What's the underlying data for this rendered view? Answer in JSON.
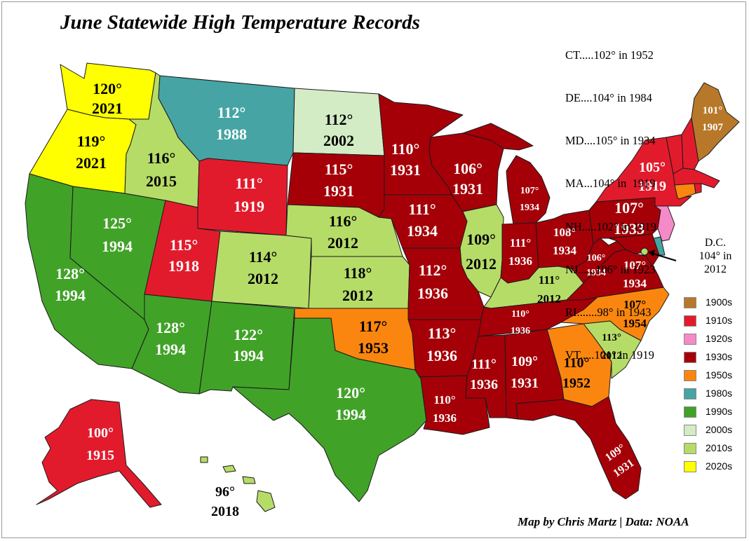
{
  "title": "June Statewide High Temperature Records",
  "credit": "Map by Chris Martz | Data: NOAA",
  "small_states": [
    {
      "line": "CT.....102° in 1952"
    },
    {
      "line": "DE....104° in 1984"
    },
    {
      "line": "MD....105° in 1934"
    },
    {
      "line": "MA...104° in  1919"
    },
    {
      "line": "NH.....102° in 1919"
    },
    {
      "line": "NJ......106° in 1923"
    },
    {
      "line": "RI.......98° in 1943"
    },
    {
      "line": "VT.....101° in 1919"
    }
  ],
  "dc": {
    "line1": "D.C.",
    "line2": "104° in",
    "line3": "2012"
  },
  "legend": [
    {
      "label": "1900s",
      "color": "#b8782a"
    },
    {
      "label": "1910s",
      "color": "#e21b2c"
    },
    {
      "label": "1920s",
      "color": "#f58ac9"
    },
    {
      "label": "1930s",
      "color": "#a50008"
    },
    {
      "label": "1950s",
      "color": "#fb860f"
    },
    {
      "label": "1980s",
      "color": "#46a4a4"
    },
    {
      "label": "1990s",
      "color": "#41a228"
    },
    {
      "label": "2000s",
      "color": "#d3ecc5"
    },
    {
      "label": "2010s",
      "color": "#b6dc68"
    },
    {
      "label": "2020s",
      "color": "#ffff00"
    }
  ],
  "states": {
    "WA": {
      "temp": "120°",
      "year": "2021"
    },
    "OR": {
      "temp": "119°",
      "year": "2021"
    },
    "CA": {
      "temp": "128°",
      "year": "1994"
    },
    "NV": {
      "temp": "125°",
      "year": "1994"
    },
    "ID": {
      "temp": "116°",
      "year": "2015"
    },
    "MT": {
      "temp": "112°",
      "year": "1988"
    },
    "WY": {
      "temp": "111°",
      "year": "1919"
    },
    "UT": {
      "temp": "115°",
      "year": "1918"
    },
    "AZ": {
      "temp": "128°",
      "year": "1994"
    },
    "CO": {
      "temp": "114°",
      "year": "2012"
    },
    "NM": {
      "temp": "122°",
      "year": "1994"
    },
    "ND": {
      "temp": "112°",
      "year": "2002"
    },
    "SD": {
      "temp": "115°",
      "year": "1931"
    },
    "NE": {
      "temp": "116°",
      "year": "2012"
    },
    "KS": {
      "temp": "118°",
      "year": "2012"
    },
    "OK": {
      "temp": "117°",
      "year": "1953"
    },
    "TX": {
      "temp": "120°",
      "year": "1994"
    },
    "MN": {
      "temp": "110°",
      "year": "1931"
    },
    "IA": {
      "temp": "111°",
      "year": "1934"
    },
    "MO": {
      "temp": "112°",
      "year": "1936"
    },
    "AR": {
      "temp": "113°",
      "year": "1936"
    },
    "LA": {
      "temp": "110°",
      "year": "1936"
    },
    "WI": {
      "temp": "106°",
      "year": "1931"
    },
    "IL": {
      "temp": "109°",
      "year": "2012"
    },
    "MI": {
      "temp": "107°",
      "year": "1934"
    },
    "IN": {
      "temp": "111°",
      "year": "1936"
    },
    "OH": {
      "temp": "108°",
      "year": "1934"
    },
    "KY": {
      "temp": "111°",
      "year": "2012"
    },
    "TN": {
      "temp": "110°",
      "year": "1936"
    },
    "MS": {
      "temp": "111°",
      "year": "1936"
    },
    "AL": {
      "temp": "109°",
      "year": "1931"
    },
    "GA": {
      "temp": "110°",
      "year": "1952"
    },
    "FL": {
      "temp": "109°",
      "year": "1931"
    },
    "SC": {
      "temp": "113°",
      "year": "2012"
    },
    "NC": {
      "temp": "107°",
      "year": "1954"
    },
    "VA": {
      "temp": "107°",
      "year": "1934"
    },
    "WV": {
      "temp": "106°",
      "year": "1934"
    },
    "PA": {
      "temp": "107°",
      "year": "1933"
    },
    "NY": {
      "temp": "105°",
      "year": "1919"
    },
    "ME": {
      "temp": "101°",
      "year": "1907"
    },
    "AK": {
      "temp": "100°",
      "year": "1915"
    },
    "HI": {
      "temp": "96°",
      "year": "2018"
    }
  }
}
